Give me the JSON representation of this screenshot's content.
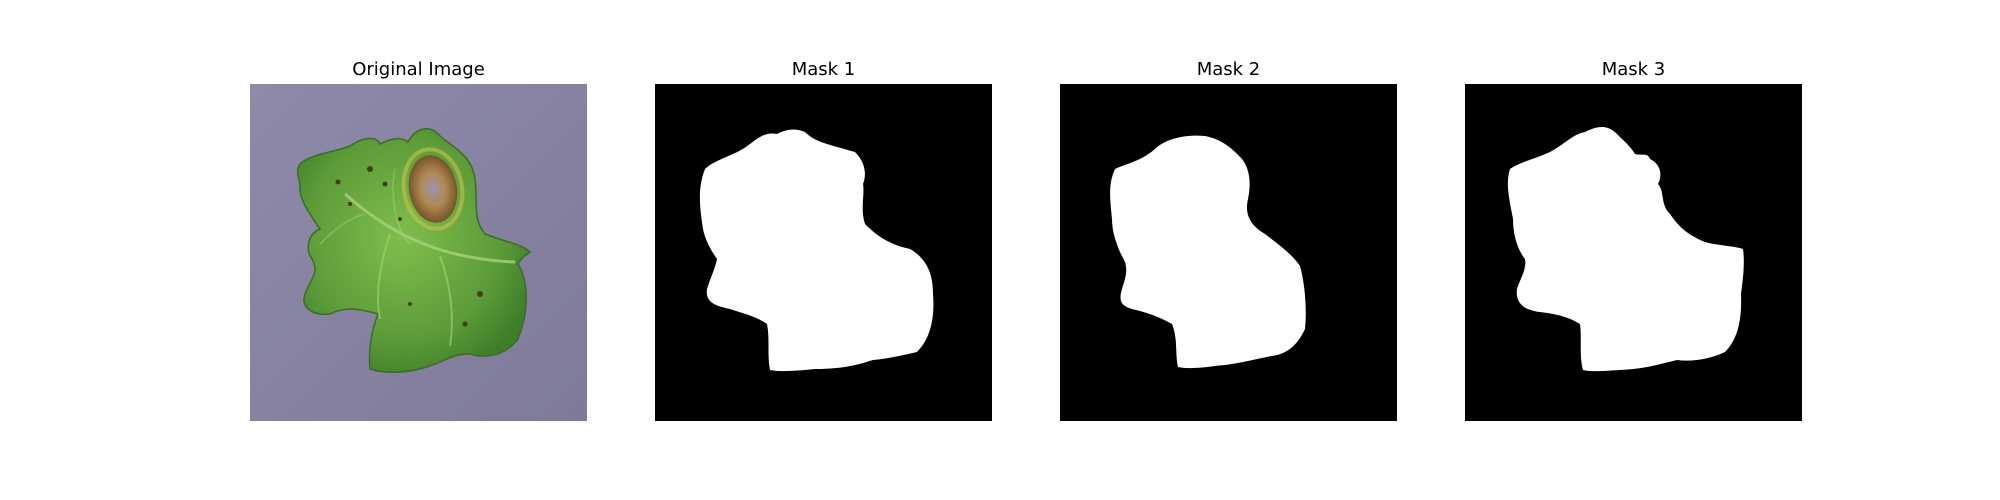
{
  "figure": {
    "panels": [
      {
        "title": "Original Image",
        "kind": "photo",
        "depicts": "leaf-photo"
      },
      {
        "title": "Mask 1",
        "kind": "mask",
        "depicts": "leaf-mask"
      },
      {
        "title": "Mask 2",
        "kind": "mask",
        "depicts": "leaf-mask"
      },
      {
        "title": "Mask 3",
        "kind": "mask",
        "depicts": "leaf-mask"
      }
    ],
    "colors": {
      "background": "#8d88a8",
      "leaf_light": "#79b348",
      "leaf_dark": "#3f7f2a",
      "lesion": "#8a5a2b",
      "mask_bg": "#000000",
      "mask_fg": "#ffffff"
    }
  }
}
